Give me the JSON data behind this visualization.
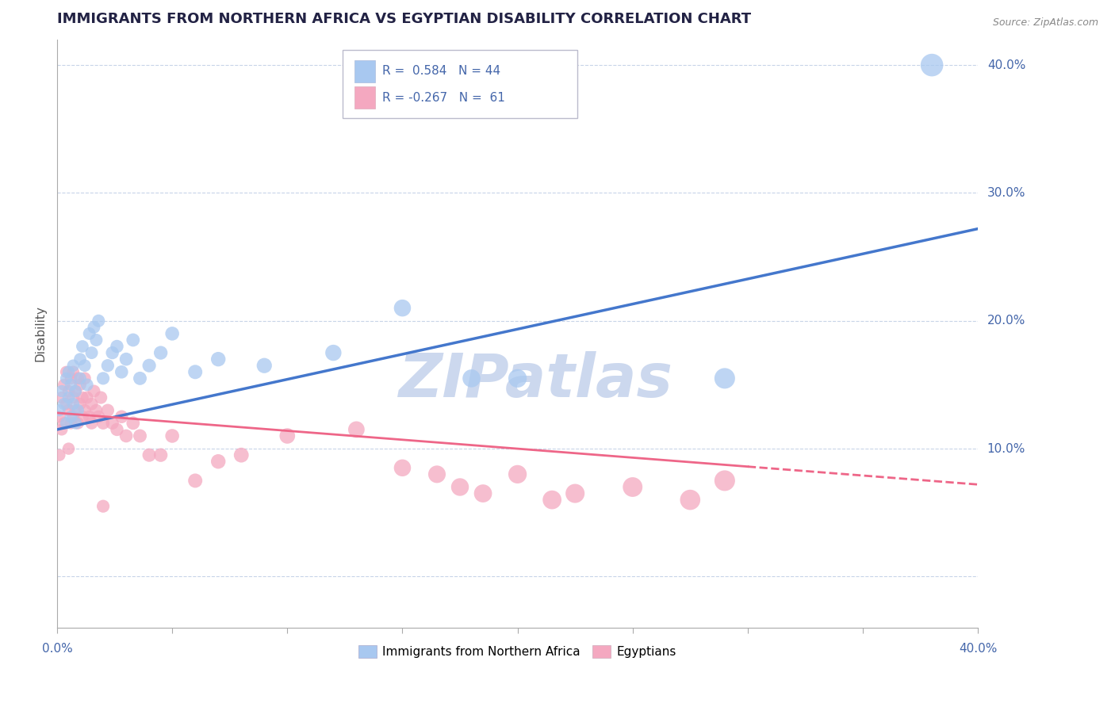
{
  "title": "IMMIGRANTS FROM NORTHERN AFRICA VS EGYPTIAN DISABILITY CORRELATION CHART",
  "source": "Source: ZipAtlas.com",
  "ylabel": "Disability",
  "xlim": [
    0.0,
    0.4
  ],
  "ylim": [
    -0.04,
    0.42
  ],
  "yticks": [
    0.0,
    0.1,
    0.2,
    0.3,
    0.4
  ],
  "xticks": [
    0.0,
    0.05,
    0.1,
    0.15,
    0.2,
    0.25,
    0.3,
    0.35,
    0.4
  ],
  "blue_R": 0.584,
  "blue_N": 44,
  "pink_R": -0.267,
  "pink_N": 61,
  "blue_color": "#a8c8f0",
  "pink_color": "#f4a8c0",
  "blue_line_color": "#4477cc",
  "pink_line_color": "#ee6688",
  "watermark": "ZIPatlas",
  "watermark_color": "#ccd8ee",
  "legend_label_blue": "Immigrants from Northern Africa",
  "legend_label_pink": "Egyptians",
  "background_color": "#ffffff",
  "grid_color": "#c8d4e8",
  "title_color": "#222244",
  "label_color": "#4466aa",
  "axis_color": "#aaaaaa",
  "blue_trend_x0": 0.0,
  "blue_trend_y0": 0.115,
  "blue_trend_x1": 0.4,
  "blue_trend_y1": 0.272,
  "pink_trend_x0": 0.0,
  "pink_trend_y0": 0.128,
  "pink_trend_x1_solid": 0.3,
  "pink_trend_y1_solid": 0.086,
  "pink_trend_x1_dash": 0.4,
  "pink_trend_y1_dash": 0.072,
  "blue_scatter_x": [
    0.001,
    0.002,
    0.003,
    0.004,
    0.004,
    0.005,
    0.005,
    0.006,
    0.006,
    0.007,
    0.007,
    0.008,
    0.008,
    0.009,
    0.01,
    0.01,
    0.011,
    0.012,
    0.013,
    0.014,
    0.015,
    0.016,
    0.017,
    0.018,
    0.02,
    0.022,
    0.024,
    0.026,
    0.028,
    0.03,
    0.033,
    0.036,
    0.04,
    0.045,
    0.05,
    0.06,
    0.07,
    0.09,
    0.12,
    0.15,
    0.18,
    0.2,
    0.29,
    0.38
  ],
  "blue_scatter_y": [
    0.13,
    0.145,
    0.135,
    0.12,
    0.155,
    0.14,
    0.16,
    0.125,
    0.15,
    0.135,
    0.165,
    0.12,
    0.145,
    0.13,
    0.17,
    0.155,
    0.18,
    0.165,
    0.15,
    0.19,
    0.175,
    0.195,
    0.185,
    0.2,
    0.155,
    0.165,
    0.175,
    0.18,
    0.16,
    0.17,
    0.185,
    0.155,
    0.165,
    0.175,
    0.19,
    0.16,
    0.17,
    0.165,
    0.175,
    0.21,
    0.155,
    0.155,
    0.155,
    0.4
  ],
  "pink_scatter_x": [
    0.001,
    0.001,
    0.002,
    0.002,
    0.003,
    0.003,
    0.004,
    0.004,
    0.005,
    0.005,
    0.005,
    0.006,
    0.006,
    0.007,
    0.007,
    0.007,
    0.008,
    0.008,
    0.009,
    0.009,
    0.01,
    0.01,
    0.011,
    0.011,
    0.012,
    0.012,
    0.013,
    0.014,
    0.015,
    0.015,
    0.016,
    0.017,
    0.018,
    0.019,
    0.02,
    0.022,
    0.024,
    0.026,
    0.028,
    0.03,
    0.033,
    0.036,
    0.04,
    0.045,
    0.05,
    0.06,
    0.07,
    0.08,
    0.1,
    0.13,
    0.15,
    0.165,
    0.175,
    0.185,
    0.2,
    0.215,
    0.225,
    0.25,
    0.275,
    0.29,
    0.02
  ],
  "pink_scatter_y": [
    0.125,
    0.095,
    0.14,
    0.115,
    0.15,
    0.12,
    0.135,
    0.16,
    0.13,
    0.145,
    0.1,
    0.155,
    0.12,
    0.14,
    0.125,
    0.16,
    0.13,
    0.145,
    0.12,
    0.155,
    0.135,
    0.15,
    0.125,
    0.14,
    0.13,
    0.155,
    0.14,
    0.125,
    0.135,
    0.12,
    0.145,
    0.13,
    0.125,
    0.14,
    0.12,
    0.13,
    0.12,
    0.115,
    0.125,
    0.11,
    0.12,
    0.11,
    0.095,
    0.095,
    0.11,
    0.075,
    0.09,
    0.095,
    0.11,
    0.115,
    0.085,
    0.08,
    0.07,
    0.065,
    0.08,
    0.06,
    0.065,
    0.07,
    0.06,
    0.075,
    0.055
  ]
}
